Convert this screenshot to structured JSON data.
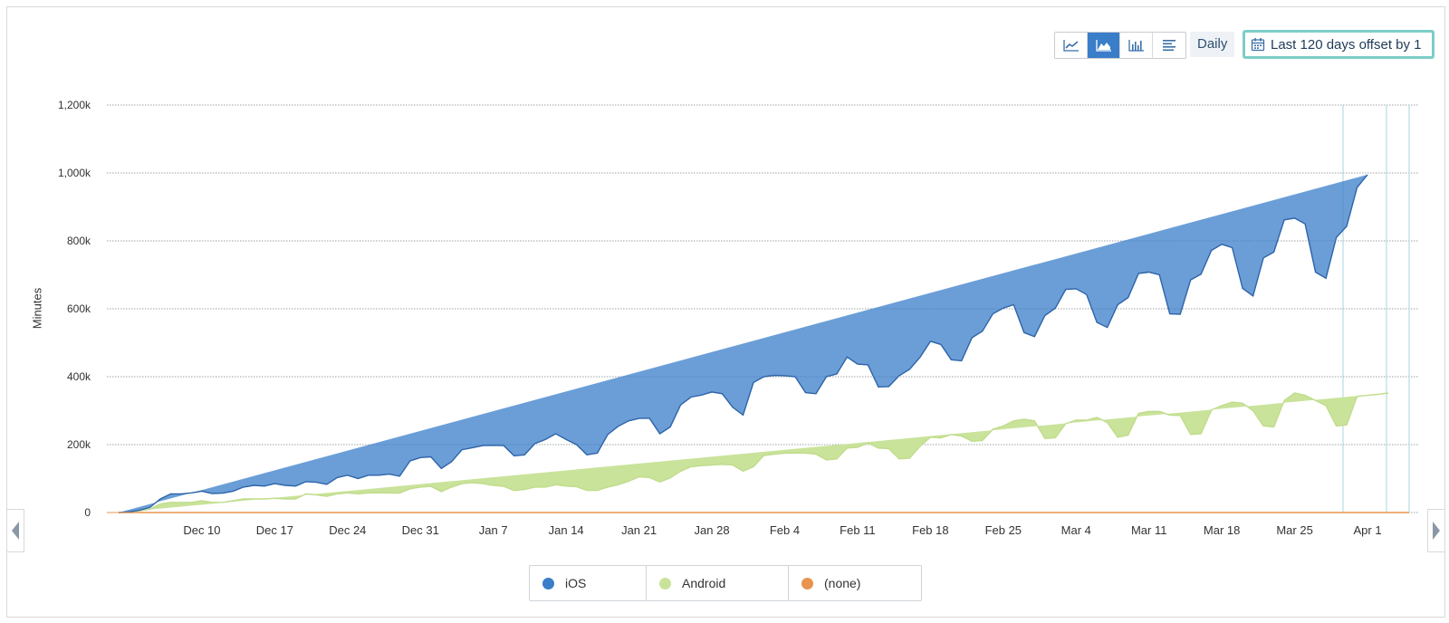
{
  "toolbar": {
    "view_types": [
      {
        "name": "line-chart-icon",
        "active": false
      },
      {
        "name": "area-chart-icon",
        "active": true
      },
      {
        "name": "bar-chart-icon",
        "active": false
      },
      {
        "name": "table-icon",
        "active": false
      }
    ],
    "interval": "Daily",
    "date_range": "Last 120 days offset by 1"
  },
  "legend": [
    {
      "label": "iOS",
      "color": "#3a7dc9"
    },
    {
      "label": "Android",
      "color": "#c9e39a"
    },
    {
      "label": "(none)",
      "color": "#e8944f"
    }
  ],
  "chart_data": {
    "type": "area",
    "stacked": true,
    "ylabel": "Minutes",
    "ylim": [
      0,
      1200000
    ],
    "y_ticks": [
      0,
      200000,
      400000,
      600000,
      800000,
      1000000,
      1200000
    ],
    "y_tick_labels": [
      "0",
      "200k",
      "400k",
      "600k",
      "800k",
      "1,000k",
      "1,200k"
    ],
    "x_start": "Dec 2",
    "x_end": "Apr 5",
    "x_ticks": [
      "Dec 10",
      "Dec 17",
      "Dec 24",
      "Dec 31",
      "Jan 7",
      "Jan 14",
      "Jan 21",
      "Jan 28",
      "Feb 4",
      "Feb 11",
      "Feb 18",
      "Feb 25",
      "Mar 4",
      "Mar 11",
      "Mar 18",
      "Mar 25",
      "Apr 1"
    ],
    "grid": true,
    "series": [
      {
        "name": "(none)",
        "color": "#e8944f",
        "values": [
          0,
          0,
          0,
          0,
          0,
          0,
          0,
          0,
          0,
          0,
          0,
          0,
          0,
          0,
          0,
          0,
          0,
          0,
          0,
          0,
          0,
          0,
          0,
          0,
          0,
          0,
          0,
          0,
          0,
          0,
          0,
          0,
          0,
          0,
          0,
          0,
          0,
          0,
          0,
          0,
          0,
          0,
          0,
          0,
          0,
          0,
          0,
          0,
          0,
          0,
          0,
          0,
          0,
          0,
          0,
          0,
          0,
          0,
          0,
          0,
          0,
          0,
          0,
          0,
          0,
          0,
          0,
          0,
          0,
          0,
          0,
          0,
          0,
          0,
          0,
          0,
          0,
          0,
          0,
          0,
          0,
          0,
          0,
          0,
          0,
          0,
          0,
          0,
          0,
          0,
          0,
          0,
          0,
          0,
          0,
          0,
          0,
          0,
          0,
          0,
          0,
          0,
          0,
          0,
          0,
          0,
          0,
          0,
          0,
          0,
          0,
          0,
          0,
          0,
          0,
          0,
          0,
          0,
          0,
          0,
          0,
          0,
          0,
          0,
          0
        ]
      },
      {
        "name": "Android",
        "color": "#c9e39a",
        "values": [
          0,
          2000,
          5000,
          10000,
          25000,
          30000,
          30000,
          30000,
          35000,
          30000,
          30000,
          35000,
          40000,
          40000,
          40000,
          42000,
          40000,
          40000,
          55000,
          52000,
          48000,
          55000,
          58000,
          55000,
          58000,
          58000,
          58000,
          57000,
          70000,
          75000,
          77000,
          62000,
          75000,
          85000,
          88000,
          85000,
          80000,
          77000,
          65000,
          68000,
          75000,
          75000,
          82000,
          78000,
          76000,
          65000,
          65000,
          75000,
          82000,
          92000,
          105000,
          103000,
          90000,
          102000,
          122000,
          135000,
          138000,
          140000,
          142000,
          140000,
          122000,
          135000,
          168000,
          172000,
          175000,
          175000,
          175000,
          172000,
          155000,
          158000,
          190000,
          192000,
          205000,
          190000,
          188000,
          158000,
          160000,
          195000,
          222000,
          220000,
          230000,
          225000,
          210000,
          212000,
          245000,
          255000,
          270000,
          275000,
          270000,
          218000,
          220000,
          262000,
          272000,
          272000,
          280000,
          265000,
          222000,
          228000,
          292000,
          298000,
          298000,
          287000,
          286000,
          230000,
          232000,
          302000,
          315000,
          325000,
          322000,
          300000,
          255000,
          252000,
          330000,
          352000,
          345000,
          330000,
          315000,
          255000,
          258000,
          342000,
          345000,
          348000,
          352000
        ]
      },
      {
        "name": "iOS",
        "color": "#3a7dc9",
        "values": [
          0,
          0,
          2000,
          5000,
          15000,
          25000,
          25000,
          28000,
          28000,
          26000,
          27000,
          28000,
          35000,
          40000,
          38000,
          43000,
          40000,
          38000,
          36000,
          37000,
          35000,
          48000,
          52000,
          45000,
          52000,
          52000,
          55000,
          50000,
          82000,
          87000,
          87000,
          68000,
          75000,
          100000,
          103000,
          112000,
          118000,
          120000,
          102000,
          102000,
          128000,
          140000,
          150000,
          137000,
          124000,
          105000,
          110000,
          155000,
          172000,
          178000,
          172000,
          175000,
          142000,
          150000,
          195000,
          205000,
          208000,
          215000,
          208000,
          170000,
          165000,
          248000,
          232000,
          232000,
          228000,
          225000,
          178000,
          178000,
          245000,
          250000,
          268000,
          245000,
          230000,
          180000,
          183000,
          245000,
          262000,
          262000,
          282000,
          275000,
          220000,
          222000,
          305000,
          322000,
          340000,
          347000,
          342000,
          255000,
          248000,
          362000,
          382000,
          395000,
          387000,
          370000,
          280000,
          280000,
          390000,
          405000,
          412000,
          410000,
          402000,
          298000,
          298000,
          455000,
          470000,
          470000,
          475000,
          455000,
          338000,
          338000,
          495000,
          515000,
          532000,
          515000,
          505000,
          378000,
          375000,
          555000,
          585000,
          615000,
          650000
        ]
      }
    ]
  }
}
